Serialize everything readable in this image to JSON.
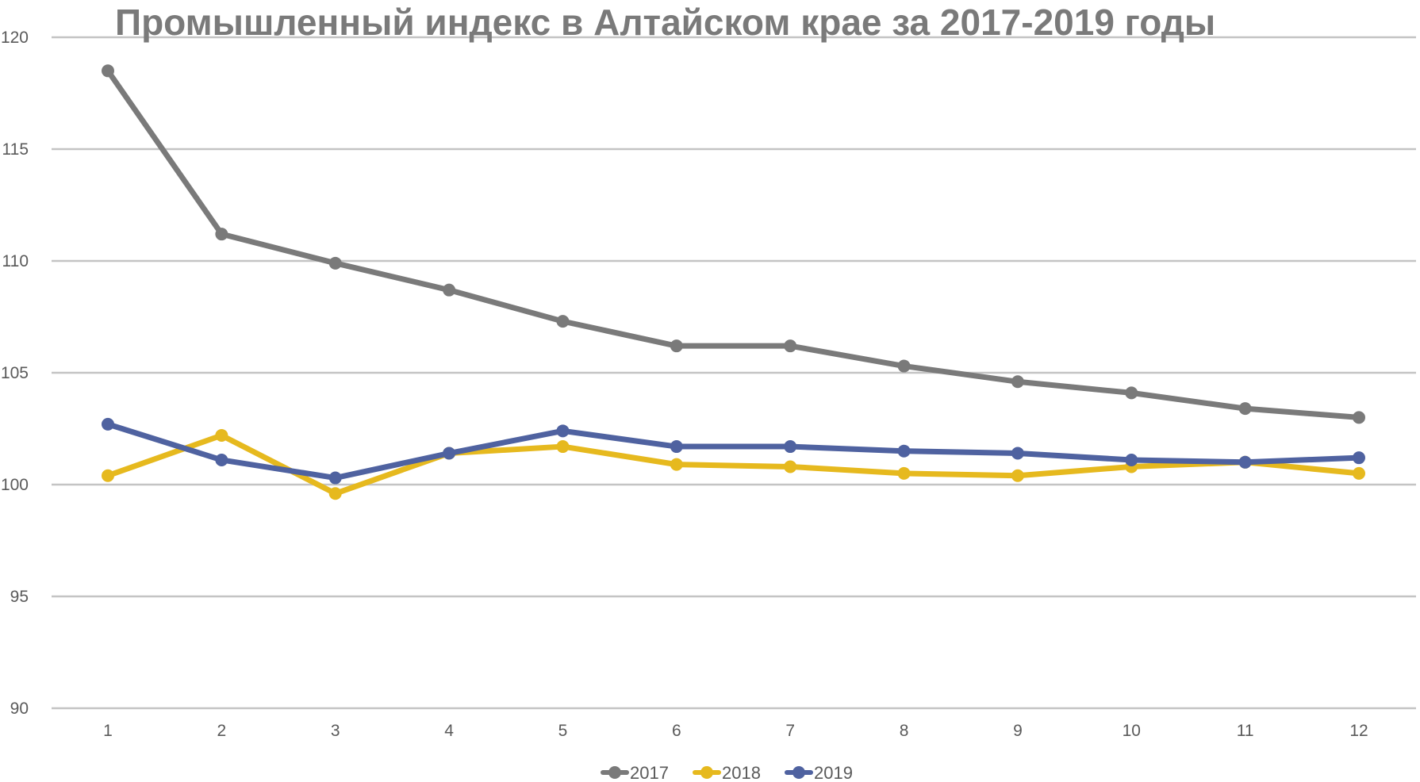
{
  "chart_data": {
    "type": "line",
    "title": "Промышленный индекс в Алтайском крае за 2017-2019 годы",
    "categories": [
      "1",
      "2",
      "3",
      "4",
      "5",
      "6",
      "7",
      "8",
      "9",
      "10",
      "11",
      "12"
    ],
    "x": [
      1,
      2,
      3,
      4,
      5,
      6,
      7,
      8,
      9,
      10,
      11,
      12
    ],
    "ylim": [
      90,
      120
    ],
    "yticks": [
      90,
      95,
      100,
      105,
      110,
      115,
      120
    ],
    "grid": true,
    "legend_position": "bottom",
    "series": [
      {
        "name": "2017",
        "color": "#7a7a7a",
        "values": [
          118.5,
          111.2,
          109.9,
          108.7,
          107.3,
          106.2,
          106.2,
          105.3,
          104.6,
          104.1,
          103.4,
          103.0
        ]
      },
      {
        "name": "2018",
        "color": "#e6b91e",
        "values": [
          100.4,
          102.2,
          99.6,
          101.4,
          101.7,
          100.9,
          100.8,
          100.5,
          100.4,
          100.8,
          101.0,
          100.5
        ]
      },
      {
        "name": "2019",
        "color": "#4f62a0",
        "values": [
          102.7,
          101.1,
          100.3,
          101.4,
          102.4,
          101.7,
          101.7,
          101.5,
          101.4,
          101.1,
          101.0,
          101.2
        ]
      }
    ]
  }
}
